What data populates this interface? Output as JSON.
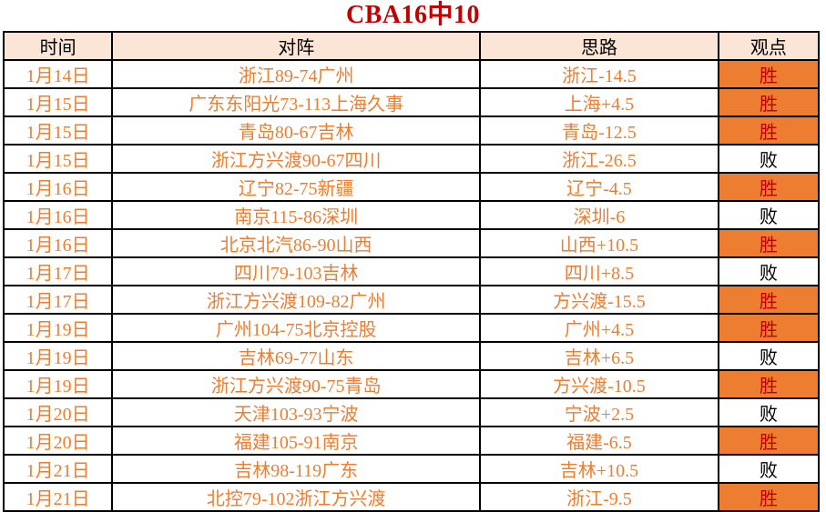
{
  "title": "CBA16中10",
  "colors": {
    "title_red": "#C00000",
    "accent_orange": "#ED7D31",
    "header_bg": "#FBE5D6",
    "win_cell_bg": "#ED7D31",
    "win_text": "#C00000",
    "loss_text": "#000000",
    "row_text": "#ED7D31",
    "border": "#000000"
  },
  "table": {
    "headers": [
      "时间",
      "对阵",
      "思路",
      "观点"
    ],
    "rows": [
      {
        "date": "1月14日",
        "matchup": "浙江89-74广州",
        "idea": "浙江-14.5",
        "result": "胜"
      },
      {
        "date": "1月15日",
        "matchup": "广东东阳光73-113上海久事",
        "idea": "上海+4.5",
        "result": "胜"
      },
      {
        "date": "1月15日",
        "matchup": "青岛80-67吉林",
        "idea": "青岛-12.5",
        "result": "胜"
      },
      {
        "date": "1月15日",
        "matchup": "浙江方兴渡90-67四川",
        "idea": "浙江-26.5",
        "result": "败"
      },
      {
        "date": "1月16日",
        "matchup": "辽宁82-75新疆",
        "idea": "辽宁-4.5",
        "result": "胜"
      },
      {
        "date": "1月16日",
        "matchup": "南京115-86深圳",
        "idea": "深圳-6",
        "result": "败"
      },
      {
        "date": "1月16日",
        "matchup": "北京北汽86-90山西",
        "idea": "山西+10.5",
        "result": "胜"
      },
      {
        "date": "1月17日",
        "matchup": "四川79-103吉林",
        "idea": "四川+8.5",
        "result": "败"
      },
      {
        "date": "1月17日",
        "matchup": "浙江方兴渡109-82广州",
        "idea": "方兴渡-15.5",
        "result": "胜"
      },
      {
        "date": "1月19日",
        "matchup": "广州104-75北京控股",
        "idea": "广州+4.5",
        "result": "胜"
      },
      {
        "date": "1月19日",
        "matchup": "吉林69-77山东",
        "idea": "吉林+6.5",
        "result": "败"
      },
      {
        "date": "1月19日",
        "matchup": "浙江方兴渡90-75青岛",
        "idea": "方兴渡-10.5",
        "result": "胜"
      },
      {
        "date": "1月20日",
        "matchup": "天津103-93宁波",
        "idea": "宁波+2.5",
        "result": "败"
      },
      {
        "date": "1月20日",
        "matchup": "福建105-91南京",
        "idea": "福建-6.5",
        "result": "胜"
      },
      {
        "date": "1月21日",
        "matchup": "吉林98-119广东",
        "idea": "吉林+10.5",
        "result": "败"
      },
      {
        "date": "1月21日",
        "matchup": "北控79-102浙江方兴渡",
        "idea": "浙江-9.5",
        "result": "胜"
      }
    ],
    "win_label": "胜",
    "loss_label": "败"
  }
}
